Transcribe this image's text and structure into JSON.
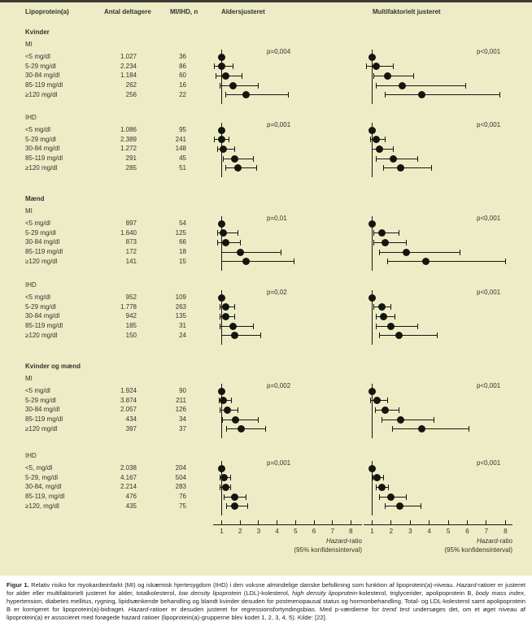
{
  "colors": {
    "figure_bg": "#edecc7",
    "top_bar": "#3b3d32",
    "marker": "#15150f",
    "text": "#33332a",
    "caption_bg": "#ffffff",
    "caption_text": "#1e1e1e"
  },
  "chart_data": {
    "type": "forest",
    "columns": [
      "Lipoprotein(a)",
      "Antal deltagere",
      "MI/IHD, n",
      "Aldersjusteret",
      "Multifaktorielt justeret"
    ],
    "x_axis": {
      "label": "Hazard-ratio",
      "label_italic_part": "Hazard",
      "sublabel": "(95% konfidensinterval)",
      "ticks": [
        1,
        2,
        3,
        4,
        5,
        6,
        7,
        8
      ],
      "range": [
        0.55,
        8.3
      ]
    },
    "groups": [
      {
        "name": "Kvinder",
        "panels": [
          {
            "outcome": "MI",
            "p_age": "p=0,004",
            "p_multi": "p<0,001",
            "rows": [
              {
                "label": "<5 mg/dl",
                "deltagere": "1.027",
                "n": "36",
                "age": {
                  "hr": 1.0
                },
                "multi": {
                  "hr": 1.0
                }
              },
              {
                "label": "5-29 mg/dl",
                "deltagere": "2.234",
                "n": "86",
                "age": {
                  "hr": 1.0,
                  "lo": 0.6,
                  "hi": 1.6
                },
                "multi": {
                  "hr": 1.2,
                  "lo": 0.7,
                  "hi": 2.1
                }
              },
              {
                "label": "30-84 mg/dl",
                "deltagere": "1.184",
                "n": "60",
                "age": {
                  "hr": 1.2,
                  "lo": 0.7,
                  "hi": 2.1
                },
                "multi": {
                  "hr": 1.8,
                  "lo": 1.1,
                  "hi": 3.2
                }
              },
              {
                "label": "85-119 mg/dl",
                "deltagere": "262",
                "n": "16",
                "age": {
                  "hr": 1.6,
                  "lo": 0.9,
                  "hi": 3.0
                },
                "multi": {
                  "hr": 2.6,
                  "lo": 1.2,
                  "hi": 5.9
                }
              },
              {
                "label": "≥120 mg/dl",
                "deltagere": "256",
                "n": "22",
                "age": {
                  "hr": 2.3,
                  "lo": 1.2,
                  "hi": 4.6
                },
                "multi": {
                  "hr": 3.6,
                  "lo": 1.7,
                  "hi": 7.7
                }
              }
            ]
          },
          {
            "outcome": "IHD",
            "p_age": "p=0,001",
            "p_multi": "p<0,001",
            "rows": [
              {
                "label": "<5 mg/dl",
                "deltagere": "1.086",
                "n": "95",
                "age": {
                  "hr": 1.0
                },
                "multi": {
                  "hr": 1.0
                }
              },
              {
                "label": "5-29 mg/dl",
                "deltagere": "2.389",
                "n": "241",
                "age": {
                  "hr": 1.0,
                  "lo": 0.6,
                  "hi": 1.4
                },
                "multi": {
                  "hr": 1.2,
                  "lo": 0.9,
                  "hi": 1.7
                }
              },
              {
                "label": "30-84 mg/dl",
                "deltagere": "1.272",
                "n": "148",
                "age": {
                  "hr": 1.1,
                  "lo": 0.8,
                  "hi": 1.7
                },
                "multi": {
                  "hr": 1.4,
                  "lo": 1.0,
                  "hi": 2.1
                }
              },
              {
                "label": "85-119 mg/dl",
                "deltagere": "291",
                "n": "45",
                "age": {
                  "hr": 1.7,
                  "lo": 1.1,
                  "hi": 2.7
                },
                "multi": {
                  "hr": 2.1,
                  "lo": 1.2,
                  "hi": 3.4
                }
              },
              {
                "label": "≥120 mg/dl",
                "deltagere": "285",
                "n": "51",
                "age": {
                  "hr": 1.9,
                  "lo": 1.2,
                  "hi": 2.9
                },
                "multi": {
                  "hr": 2.5,
                  "lo": 1.6,
                  "hi": 4.1
                }
              }
            ]
          }
        ]
      },
      {
        "name": "Mænd",
        "panels": [
          {
            "outcome": "MI",
            "p_age": "p=0,01",
            "p_multi": "p<0,001",
            "rows": [
              {
                "label": "<5 mg/dl",
                "deltagere": "897",
                "n": "54",
                "age": {
                  "hr": 1.0
                },
                "multi": {
                  "hr": 1.0
                }
              },
              {
                "label": "5-29 mg/dl",
                "deltagere": "1.640",
                "n": "125",
                "age": {
                  "hr": 1.1,
                  "lo": 0.8,
                  "hi": 1.9
                },
                "multi": {
                  "hr": 1.5,
                  "lo": 1.1,
                  "hi": 2.4
                }
              },
              {
                "label": "30-84 mg/dl",
                "deltagere": "873",
                "n": "66",
                "age": {
                  "hr": 1.2,
                  "lo": 0.8,
                  "hi": 2.0
                },
                "multi": {
                  "hr": 1.7,
                  "lo": 1.1,
                  "hi": 2.8
                }
              },
              {
                "label": "85-119 mg/dl",
                "deltagere": "172",
                "n": "18",
                "age": {
                  "hr": 2.0,
                  "lo": 1.0,
                  "hi": 4.2
                },
                "multi": {
                  "hr": 2.8,
                  "lo": 1.4,
                  "hi": 5.6
                }
              },
              {
                "label": "≥120 mg/dl",
                "deltagere": "141",
                "n": "15",
                "age": {
                  "hr": 2.3,
                  "lo": 1.0,
                  "hi": 4.9
                },
                "multi": {
                  "hr": 3.8,
                  "lo": 1.8,
                  "hi": 8.0
                }
              }
            ]
          },
          {
            "outcome": "IHD",
            "p_age": "p=0,02",
            "p_multi": "p<0,001",
            "rows": [
              {
                "label": "<5 mg/dl",
                "deltagere": "952",
                "n": "109",
                "age": {
                  "hr": 1.0
                },
                "multi": {
                  "hr": 1.0
                }
              },
              {
                "label": "5-29 mg/dl",
                "deltagere": "1.778",
                "n": "263",
                "age": {
                  "hr": 1.2,
                  "lo": 0.9,
                  "hi": 1.7
                },
                "multi": {
                  "hr": 1.5,
                  "lo": 1.1,
                  "hi": 2.0
                }
              },
              {
                "label": "30-84 mg/dl",
                "deltagere": "942",
                "n": "135",
                "age": {
                  "hr": 1.2,
                  "lo": 0.9,
                  "hi": 1.7
                },
                "multi": {
                  "hr": 1.6,
                  "lo": 1.2,
                  "hi": 2.2
                }
              },
              {
                "label": "85-119 mg/dl",
                "deltagere": "185",
                "n": "31",
                "age": {
                  "hr": 1.6,
                  "lo": 0.9,
                  "hi": 2.7
                },
                "multi": {
                  "hr": 2.0,
                  "lo": 1.2,
                  "hi": 3.4
                }
              },
              {
                "label": "≥120 mg/dl",
                "deltagere": "150",
                "n": "24",
                "age": {
                  "hr": 1.7,
                  "lo": 1.0,
                  "hi": 3.1
                },
                "multi": {
                  "hr": 2.4,
                  "lo": 1.4,
                  "hi": 4.4
                }
              }
            ]
          }
        ]
      },
      {
        "name": "Kvinder og mænd",
        "panels": [
          {
            "outcome": "MI",
            "p_age": "p=0,002",
            "p_multi": "p<0,001",
            "rows": [
              {
                "label": "<5 mg/dl",
                "deltagere": "1.924",
                "n": "90",
                "age": {
                  "hr": 1.0
                },
                "multi": {
                  "hr": 1.0
                }
              },
              {
                "label": "5-29 mg/dl",
                "deltagere": "3.874",
                "n": "211",
                "age": {
                  "hr": 1.1,
                  "lo": 0.85,
                  "hi": 1.55
                },
                "multi": {
                  "hr": 1.25,
                  "lo": 0.9,
                  "hi": 1.8
                }
              },
              {
                "label": "30-84 mg/dl",
                "deltagere": "2.057",
                "n": "126",
                "age": {
                  "hr": 1.3,
                  "lo": 0.9,
                  "hi": 1.9
                },
                "multi": {
                  "hr": 1.7,
                  "lo": 1.15,
                  "hi": 2.4
                }
              },
              {
                "label": "85-119 mg/dl",
                "deltagere": "434",
                "n": "34",
                "age": {
                  "hr": 1.75,
                  "lo": 1.05,
                  "hi": 3.0
                },
                "multi": {
                  "hr": 2.5,
                  "lo": 1.5,
                  "hi": 4.25
                }
              },
              {
                "label": "≥120 mg/dl",
                "deltagere": "397",
                "n": "37",
                "age": {
                  "hr": 2.05,
                  "lo": 1.25,
                  "hi": 3.4
                },
                "multi": {
                  "hr": 3.6,
                  "lo": 2.05,
                  "hi": 6.1
                }
              }
            ]
          },
          {
            "outcome": "IHD",
            "p_age": "p=0,001",
            "p_multi": "p<0,001",
            "rows": [
              {
                "label": "<5, mg/dl",
                "deltagere": "2.038",
                "n": "204",
                "age": {
                  "hr": 1.0
                },
                "multi": {
                  "hr": 1.0
                }
              },
              {
                "label": "5-29, mg/dl",
                "deltagere": "4.167",
                "n": "504",
                "age": {
                  "hr": 1.15,
                  "lo": 0.9,
                  "hi": 1.5
                },
                "multi": {
                  "hr": 1.25,
                  "lo": 1.05,
                  "hi": 1.6
                }
              },
              {
                "label": "30-84, mg/dl",
                "deltagere": "2.214",
                "n": "283",
                "age": {
                  "hr": 1.2,
                  "lo": 0.9,
                  "hi": 1.5
                },
                "multi": {
                  "hr": 1.5,
                  "lo": 1.2,
                  "hi": 1.85
                }
              },
              {
                "label": "85-119, mg/dl",
                "deltagere": "476",
                "n": "76",
                "age": {
                  "hr": 1.7,
                  "lo": 1.15,
                  "hi": 2.3
                },
                "multi": {
                  "hr": 2.0,
                  "lo": 1.4,
                  "hi": 2.8
                }
              },
              {
                "label": "≥120, mg/dl",
                "deltagere": "435",
                "n": "75",
                "age": {
                  "hr": 1.7,
                  "lo": 1.25,
                  "hi": 2.4
                },
                "multi": {
                  "hr": 2.45,
                  "lo": 1.7,
                  "hi": 3.55
                }
              }
            ]
          }
        ]
      }
    ]
  },
  "caption": {
    "segments": [
      {
        "t": "Figur 1. ",
        "b": true
      },
      {
        "t": "Relativ risiko for myokardieinfarkt (MI) og iskæmisk hjertesygdom (IHD) i den voksne almindelige danske befolkning som funktion af lipoprotein(a)-niveau. "
      },
      {
        "t": "Hazard",
        "i": true
      },
      {
        "t": "-ratioer er justeret for alder eller multifaktorielt justeret for alder, totalkolesterol, "
      },
      {
        "t": "low density lipoprotein",
        "i": true
      },
      {
        "t": " (LDL)-kolesterol, "
      },
      {
        "t": "high density lipoprotein",
        "i": true
      },
      {
        "t": "-kolesterol, triglycerider, apolipoprotein B, "
      },
      {
        "t": "body mass index",
        "i": true
      },
      {
        "t": ", hypertension, diabetes mellitus, rygning, lipidsænkende behandling og blandt kvinder desuden for postmenopausal status og hormonbehandling. Total- og LDL-kolesterol samt apolipoprotein B er korrigeret for lipoprotein(a)-bidraget. "
      },
      {
        "t": "Hazard",
        "i": true
      },
      {
        "t": "-ratioer er desuden justeret for regressionsfortyndingsbias. Med p-værdierne for "
      },
      {
        "t": "trend test",
        "i": true
      },
      {
        "t": " undersøges det, om et øget niveau af lipoprotein(a) er associeret med forøgede hazard ratioer (lipoprotein(a)-grupperne blev kodet 1, 2, 3, 4, 5). Kilde: [22]."
      }
    ]
  }
}
